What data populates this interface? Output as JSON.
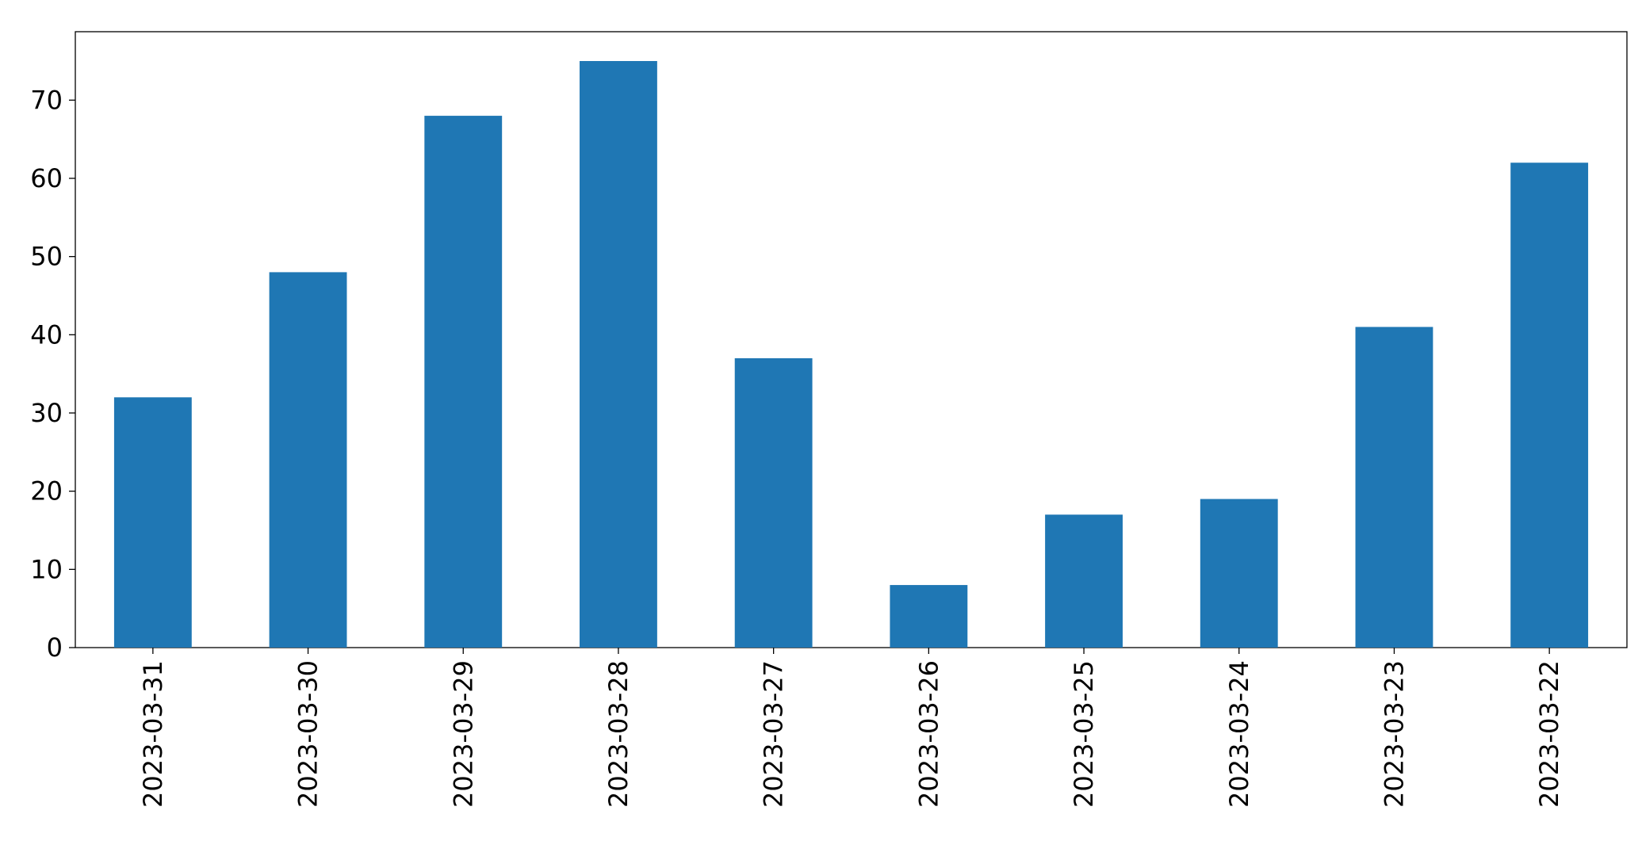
{
  "chart_data": {
    "type": "bar",
    "categories": [
      "2023-03-31",
      "2023-03-30",
      "2023-03-29",
      "2023-03-28",
      "2023-03-27",
      "2023-03-26",
      "2023-03-25",
      "2023-03-24",
      "2023-03-23",
      "2023-03-22"
    ],
    "values": [
      32,
      48,
      68,
      75,
      37,
      8,
      17,
      19,
      41,
      62
    ],
    "color": "#1f77b4",
    "ylim": [
      0,
      78.75
    ],
    "yticks": [
      0,
      10,
      20,
      30,
      40,
      50,
      60,
      70
    ],
    "grid": false
  }
}
